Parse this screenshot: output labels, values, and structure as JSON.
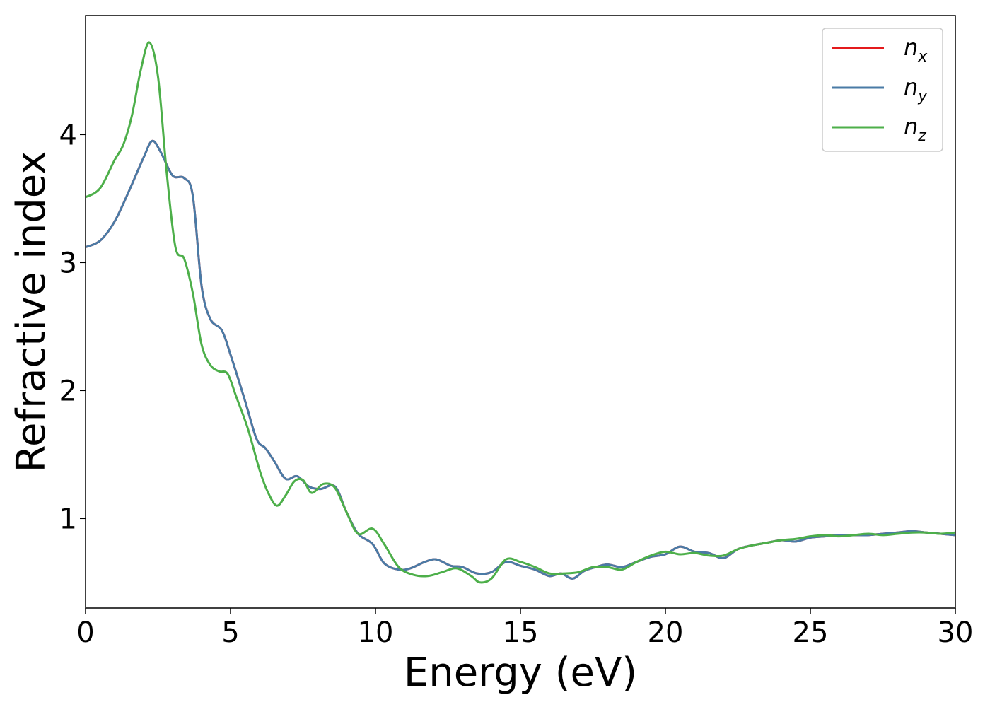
{
  "chart_data": {
    "type": "line",
    "title": "",
    "xlabel": "Energy (eV)",
    "ylabel": "Refractive index",
    "xlim": [
      0,
      30
    ],
    "ylim": [
      0.3,
      4.93
    ],
    "xticks": [
      0,
      5,
      10,
      15,
      20,
      25,
      30
    ],
    "yticks": [
      1,
      2,
      3,
      4
    ],
    "grid": false,
    "legend_position": "top-right",
    "series": [
      {
        "name": "n_x",
        "label_base": "n",
        "label_sub": "x",
        "color": "#e41a1c",
        "x": [
          0,
          0.5,
          1.0,
          1.5,
          2.0,
          2.3,
          2.6,
          3.0,
          3.4,
          3.7,
          4.0,
          4.3,
          4.7,
          5.0,
          5.5,
          5.9,
          6.2,
          6.5,
          6.9,
          7.3,
          7.7,
          8.1,
          8.6,
          9.0,
          9.4,
          9.9,
          10.3,
          10.8,
          11.2,
          11.7,
          12.1,
          12.6,
          13.0,
          13.5,
          14.0,
          14.5,
          15.0,
          15.5,
          16.0,
          16.4,
          16.8,
          17.2,
          17.6,
          18.0,
          18.5,
          19.0,
          19.5,
          20.0,
          20.5,
          21.0,
          21.5,
          22.0,
          22.5,
          23.0,
          23.5,
          24.0,
          24.5,
          25.0,
          25.5,
          26.0,
          26.5,
          27.0,
          27.5,
          28.0,
          28.5,
          29.0,
          29.5,
          30.0
        ],
        "y": [
          3.12,
          3.17,
          3.32,
          3.56,
          3.82,
          3.95,
          3.86,
          3.68,
          3.66,
          3.52,
          2.82,
          2.56,
          2.47,
          2.28,
          1.92,
          1.62,
          1.55,
          1.45,
          1.31,
          1.33,
          1.25,
          1.23,
          1.25,
          1.05,
          0.88,
          0.8,
          0.65,
          0.6,
          0.61,
          0.66,
          0.68,
          0.63,
          0.62,
          0.57,
          0.58,
          0.66,
          0.63,
          0.6,
          0.55,
          0.57,
          0.53,
          0.59,
          0.62,
          0.64,
          0.62,
          0.66,
          0.7,
          0.72,
          0.78,
          0.74,
          0.73,
          0.69,
          0.76,
          0.79,
          0.81,
          0.83,
          0.82,
          0.85,
          0.86,
          0.87,
          0.87,
          0.87,
          0.88,
          0.89,
          0.9,
          0.89,
          0.88,
          0.87
        ]
      },
      {
        "name": "n_y",
        "label_base": "n",
        "label_sub": "y",
        "color": "#4a7ba6",
        "x": [
          0,
          0.5,
          1.0,
          1.5,
          2.0,
          2.3,
          2.6,
          3.0,
          3.4,
          3.7,
          4.0,
          4.3,
          4.7,
          5.0,
          5.5,
          5.9,
          6.2,
          6.5,
          6.9,
          7.3,
          7.7,
          8.1,
          8.6,
          9.0,
          9.4,
          9.9,
          10.3,
          10.8,
          11.2,
          11.7,
          12.1,
          12.6,
          13.0,
          13.5,
          14.0,
          14.5,
          15.0,
          15.5,
          16.0,
          16.4,
          16.8,
          17.2,
          17.6,
          18.0,
          18.5,
          19.0,
          19.5,
          20.0,
          20.5,
          21.0,
          21.5,
          22.0,
          22.5,
          23.0,
          23.5,
          24.0,
          24.5,
          25.0,
          25.5,
          26.0,
          26.5,
          27.0,
          27.5,
          28.0,
          28.5,
          29.0,
          29.5,
          30.0
        ],
        "y": [
          3.12,
          3.17,
          3.32,
          3.56,
          3.82,
          3.95,
          3.86,
          3.68,
          3.66,
          3.52,
          2.82,
          2.56,
          2.47,
          2.28,
          1.92,
          1.62,
          1.55,
          1.45,
          1.31,
          1.33,
          1.25,
          1.23,
          1.25,
          1.05,
          0.88,
          0.8,
          0.65,
          0.6,
          0.61,
          0.66,
          0.68,
          0.63,
          0.62,
          0.57,
          0.58,
          0.66,
          0.63,
          0.6,
          0.55,
          0.57,
          0.53,
          0.59,
          0.62,
          0.64,
          0.62,
          0.66,
          0.7,
          0.72,
          0.78,
          0.74,
          0.73,
          0.69,
          0.76,
          0.79,
          0.81,
          0.83,
          0.82,
          0.85,
          0.86,
          0.87,
          0.87,
          0.87,
          0.88,
          0.89,
          0.9,
          0.89,
          0.88,
          0.87
        ]
      },
      {
        "name": "n_z",
        "label_base": "n",
        "label_sub": "z",
        "color": "#4daf4a",
        "x": [
          0,
          0.5,
          1.0,
          1.3,
          1.6,
          1.9,
          2.2,
          2.5,
          2.8,
          3.1,
          3.4,
          3.7,
          4.0,
          4.3,
          4.6,
          4.9,
          5.2,
          5.6,
          6.0,
          6.3,
          6.6,
          6.9,
          7.2,
          7.5,
          7.8,
          8.2,
          8.6,
          9.0,
          9.4,
          9.9,
          10.3,
          10.8,
          11.3,
          11.8,
          12.3,
          12.8,
          13.3,
          13.6,
          14.0,
          14.5,
          15.0,
          15.5,
          16.0,
          16.5,
          17.0,
          17.5,
          18.0,
          18.5,
          19.0,
          19.5,
          20.0,
          20.5,
          21.0,
          21.5,
          22.0,
          22.5,
          23.0,
          23.5,
          24.0,
          24.5,
          25.0,
          25.5,
          26.0,
          26.5,
          27.0,
          27.5,
          28.0,
          28.5,
          29.0,
          29.5,
          30.0
        ],
        "y": [
          3.51,
          3.58,
          3.8,
          3.92,
          4.15,
          4.5,
          4.72,
          4.45,
          3.7,
          3.12,
          3.03,
          2.76,
          2.36,
          2.2,
          2.15,
          2.13,
          1.95,
          1.7,
          1.38,
          1.2,
          1.1,
          1.18,
          1.29,
          1.3,
          1.2,
          1.27,
          1.24,
          1.05,
          0.88,
          0.92,
          0.8,
          0.62,
          0.56,
          0.55,
          0.58,
          0.61,
          0.55,
          0.5,
          0.53,
          0.68,
          0.66,
          0.62,
          0.57,
          0.57,
          0.58,
          0.62,
          0.62,
          0.6,
          0.66,
          0.71,
          0.74,
          0.72,
          0.73,
          0.71,
          0.71,
          0.76,
          0.79,
          0.81,
          0.83,
          0.84,
          0.86,
          0.87,
          0.86,
          0.87,
          0.88,
          0.87,
          0.88,
          0.89,
          0.89,
          0.88,
          0.89
        ]
      }
    ]
  }
}
